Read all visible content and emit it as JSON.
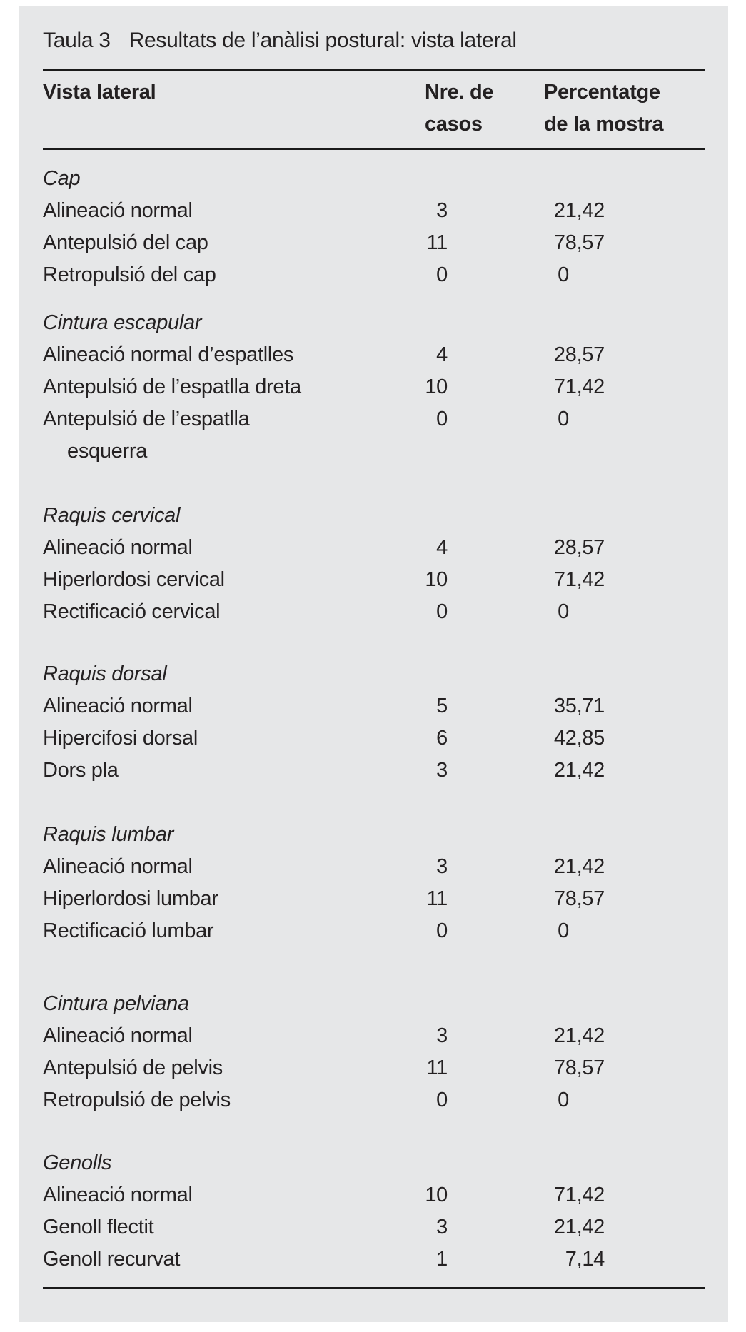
{
  "page": {
    "panel_bg": "#e6e7e8",
    "text_color": "#242122",
    "rule_color": "#1a1a1a"
  },
  "table": {
    "title_label": "Taula 3",
    "title_text": "Resultats de l’anàlisi postural: vista lateral",
    "header": {
      "col1": "Vista lateral",
      "col2_line1": "Nre. de",
      "col2_line2": "casos",
      "col3_line1": "Percentatge",
      "col3_line2": "de la mostra"
    },
    "sections": [
      {
        "name": "Cap",
        "rows": [
          {
            "label": "Alineació normal",
            "casos": "3",
            "pct": "21,42"
          },
          {
            "label": "Antepulsió del cap",
            "casos": "11",
            "pct": "78,57"
          },
          {
            "label": "Retropulsió del cap",
            "casos": "0",
            "pct": "0"
          }
        ]
      },
      {
        "name": "Cintura escapular",
        "rows": [
          {
            "label": "Alineació normal d’espatlles",
            "casos": "4",
            "pct": "28,57"
          },
          {
            "label": "Antepulsió de l’espatlla dreta",
            "casos": "10",
            "pct": "71,42"
          },
          {
            "label": "Antepulsió de l’espatlla",
            "label2": "esquerra",
            "casos": "0",
            "pct": "0"
          }
        ]
      },
      {
        "name": "Raquis cervical",
        "rows": [
          {
            "label": "Alineació normal",
            "casos": "4",
            "pct": "28,57"
          },
          {
            "label": "Hiperlordosi cervical",
            "casos": "10",
            "pct": "71,42"
          },
          {
            "label": "Rectificació cervical",
            "casos": "0",
            "pct": "0"
          }
        ]
      },
      {
        "name": "Raquis dorsal",
        "rows": [
          {
            "label": "Alineació normal",
            "casos": "5",
            "pct": "35,71"
          },
          {
            "label": "Hipercifosi dorsal",
            "casos": "6",
            "pct": "42,85"
          },
          {
            "label": "Dors pla",
            "casos": "3",
            "pct": "21,42"
          }
        ]
      },
      {
        "name": "Raquis lumbar",
        "rows": [
          {
            "label": "Alineació normal",
            "casos": "3",
            "pct": "21,42"
          },
          {
            "label": "Hiperlordosi lumbar",
            "casos": "11",
            "pct": "78,57"
          },
          {
            "label": "Rectificació lumbar",
            "casos": "0",
            "pct": "0"
          }
        ]
      },
      {
        "name": "Cintura pelviana",
        "rows": [
          {
            "label": "Alineació normal",
            "casos": "3",
            "pct": "21,42"
          },
          {
            "label": "Antepulsió de pelvis",
            "casos": "11",
            "pct": "78,57"
          },
          {
            "label": "Retropulsió de pelvis",
            "casos": "0",
            "pct": "0"
          }
        ]
      },
      {
        "name": "Genolls",
        "rows": [
          {
            "label": "Alineació normal",
            "casos": "10",
            "pct": "71,42"
          },
          {
            "label": "Genoll flectit",
            "casos": "3",
            "pct": "21,42"
          },
          {
            "label": "Genoll recurvat",
            "casos": "1",
            "pct": "7,14"
          }
        ]
      }
    ]
  }
}
